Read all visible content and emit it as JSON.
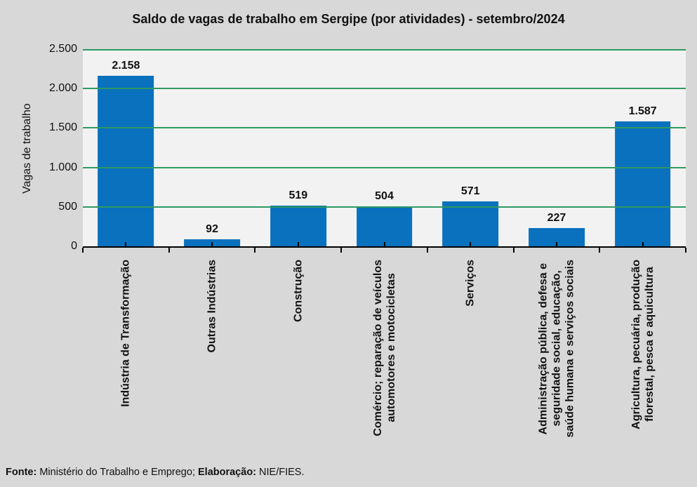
{
  "title": "Saldo de vagas de trabalho em Sergipe (por atividades) - setembro/2024",
  "chart_data": {
    "type": "bar",
    "title": "Saldo de vagas de trabalho em Sergipe (por atividades) - setembro/2024",
    "xlabel": "",
    "ylabel": "Vagas de trabalho",
    "categories": [
      "Indústria de Transformação",
      "Outras Indústrias",
      "Construção",
      "Comércio; reparação de veículos\nautomotores e motocicletas",
      "Serviços",
      "Administração pública, defesa e\nseguridade social, educação,\nsaúde humana e serviços sociais",
      "Agricultura, pecuária, produção\nflorestal, pesca e aquicultura"
    ],
    "values": [
      2158,
      92,
      519,
      504,
      571,
      227,
      1587
    ],
    "value_labels": [
      "2.158",
      "92",
      "519",
      "504",
      "571",
      "227",
      "1.587"
    ],
    "ylim": [
      0,
      2500
    ],
    "yticks": [
      0,
      500,
      1000,
      1500,
      2000,
      2500
    ],
    "ytick_labels": [
      "0",
      "500",
      "1.000",
      "1.500",
      "2.000",
      "2.500"
    ],
    "grid": true,
    "legend": "none",
    "colors": {
      "bar": "#0971BE",
      "gridline": "#2E9962",
      "plot_bg": "#F2F2F2",
      "page_bg": "#D8D8D8",
      "axis": "#000000"
    }
  },
  "footer": {
    "fonte_label": "Fonte:",
    "fonte_text": " Ministério do Trabalho e Emprego; ",
    "elaboracao_label": "Elaboração:",
    "elaboracao_text": " NIE/FIES."
  }
}
